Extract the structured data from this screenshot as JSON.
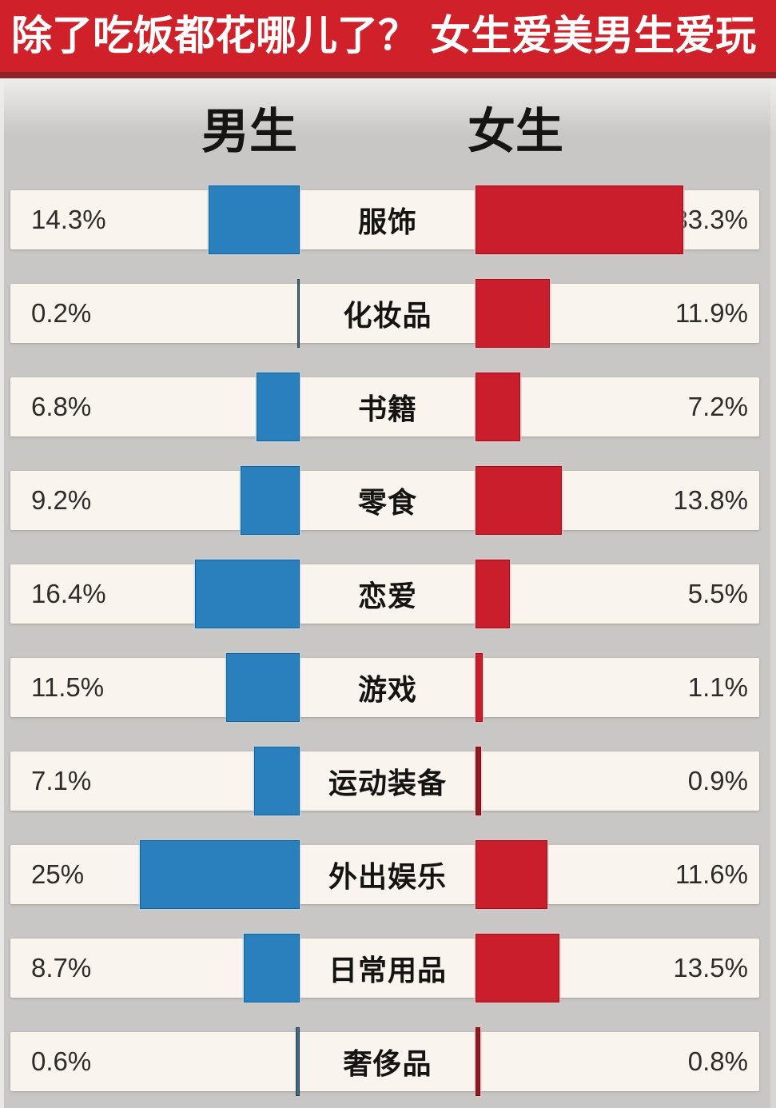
{
  "title_bar": {
    "text": "除了吃饭都花哪儿了？ 女生爱美男生爱玩",
    "bg_color": "#d0212a",
    "underline_color": "#8e2227",
    "text_color": "#ffffff"
  },
  "chart_data": {
    "type": "bar",
    "variant": "diverging-tornado",
    "title": "除了吃饭都花哪儿了？ 女生爱美男生爱玩",
    "unit": "%",
    "legend_position": "top-center-headers",
    "grid": false,
    "categories": [
      "服饰",
      "化妆品",
      "书籍",
      "零食",
      "恋爱",
      "游戏",
      "运动装备",
      "外出娱乐",
      "日常用品",
      "奢侈品"
    ],
    "series": [
      {
        "name": "男生",
        "direction": "left",
        "color": "#2a80bd",
        "values": [
          14.3,
          0.2,
          6.8,
          9.2,
          16.4,
          11.5,
          7.1,
          25,
          8.7,
          0.6
        ],
        "labels": [
          "14.3%",
          "0.2%",
          "6.8%",
          "9.2%",
          "16.4%",
          "11.5%",
          "7.1%",
          "25%",
          "8.7%",
          "0.6%"
        ]
      },
      {
        "name": "女生",
        "direction": "right",
        "color": "#cb1e2d",
        "values": [
          33.3,
          11.9,
          7.2,
          13.8,
          5.5,
          1.1,
          0.9,
          11.6,
          13.5,
          0.8
        ],
        "labels": [
          "33.3%",
          "11.9%",
          "7.2%",
          "13.8%",
          "5.5%",
          "1.1%",
          "0.9%",
          "11.6%",
          "13.5%",
          "0.8%"
        ]
      }
    ],
    "row_background_color": "#f9f5ee",
    "page_background_color": "#c9c7c5"
  }
}
